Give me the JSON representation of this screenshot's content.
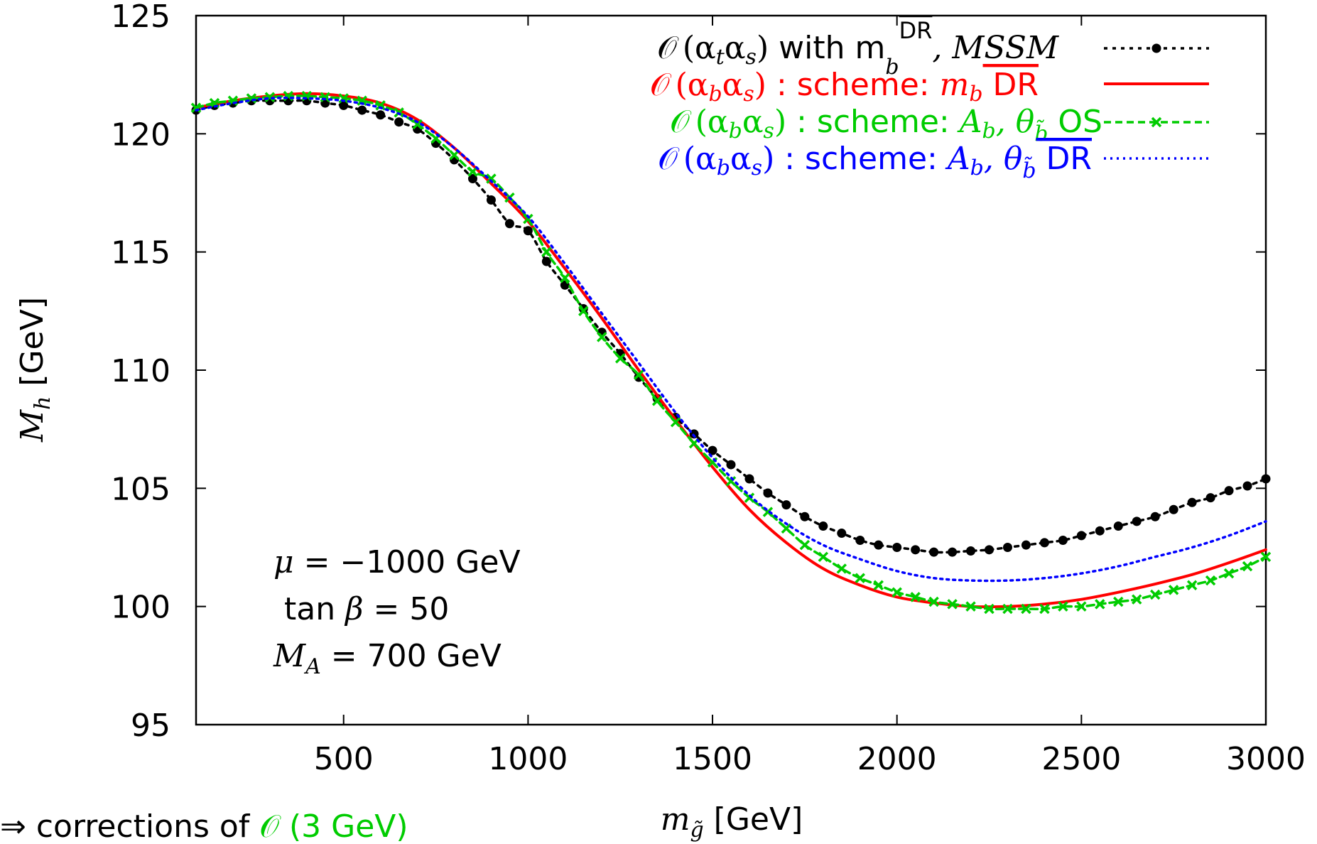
{
  "chart_data": {
    "type": "line",
    "xlabel": {
      "symbol": "m",
      "sub": "g̃",
      "unit": "[GeV]"
    },
    "ylabel": {
      "symbol": "M",
      "sub": "h",
      "unit": "[GeV]"
    },
    "xlim": [
      100,
      3000
    ],
    "ylim": [
      95,
      125
    ],
    "xticks": [
      500,
      1000,
      1500,
      2000,
      2500,
      3000
    ],
    "yticks": [
      95,
      100,
      105,
      110,
      115,
      120,
      125
    ],
    "legend_position": "top-right",
    "series": [
      {
        "legend": {
          "pre": "𝒪",
          "paren": "(α",
          "s1": "t",
          "mid": "α",
          "s2": "s",
          "close": ")",
          "text": " with m",
          "sub": "b",
          "sup": "DR",
          "tail": ", MSSM"
        },
        "color": "#000000",
        "style": "dotted-circles",
        "x": [
          100,
          150,
          200,
          250,
          300,
          350,
          400,
          450,
          500,
          550,
          600,
          650,
          700,
          750,
          800,
          850,
          900,
          950,
          1000,
          1050,
          1100,
          1150,
          1200,
          1250,
          1300,
          1350,
          1400,
          1450,
          1500,
          1550,
          1600,
          1650,
          1700,
          1750,
          1800,
          1850,
          1900,
          1950,
          2000,
          2050,
          2100,
          2150,
          2200,
          2250,
          2300,
          2350,
          2400,
          2450,
          2500,
          2550,
          2600,
          2650,
          2700,
          2750,
          2800,
          2850,
          2900,
          2950,
          3000
        ],
        "y": [
          121.0,
          121.2,
          121.3,
          121.4,
          121.4,
          121.4,
          121.4,
          121.3,
          121.2,
          121.0,
          120.8,
          120.5,
          120.2,
          119.6,
          118.9,
          118.1,
          117.2,
          116.2,
          115.9,
          114.6,
          113.6,
          112.6,
          111.6,
          110.7,
          109.7,
          108.8,
          108.0,
          107.3,
          106.6,
          106.0,
          105.4,
          104.8,
          104.3,
          103.8,
          103.4,
          103.1,
          102.8,
          102.6,
          102.5,
          102.4,
          102.3,
          102.3,
          102.35,
          102.4,
          102.5,
          102.6,
          102.7,
          102.8,
          103.0,
          103.2,
          103.4,
          103.6,
          103.8,
          104.1,
          104.4,
          104.6,
          104.9,
          105.1,
          105.4
        ]
      },
      {
        "legend": {
          "pre": "𝒪",
          "paren": "(α",
          "s1": "b",
          "mid": "α",
          "s2": "s",
          "close": ")",
          "text": " : scheme: ",
          "var": "m",
          "vsub": "b",
          "after": " DR"
        },
        "color": "#ff0000",
        "style": "solid",
        "x": [
          100,
          200,
          300,
          400,
          500,
          600,
          700,
          800,
          900,
          1000,
          1100,
          1200,
          1300,
          1400,
          1500,
          1600,
          1700,
          1800,
          1900,
          2000,
          2100,
          2200,
          2300,
          2400,
          2500,
          2600,
          2700,
          2800,
          2900,
          3000
        ],
        "y": [
          121.1,
          121.4,
          121.6,
          121.7,
          121.6,
          121.3,
          120.6,
          119.4,
          117.9,
          116.3,
          114.3,
          112.2,
          110.0,
          107.9,
          105.9,
          104.1,
          102.7,
          101.6,
          100.9,
          100.4,
          100.15,
          100.0,
          100.0,
          100.1,
          100.3,
          100.6,
          100.95,
          101.35,
          101.85,
          102.4
        ]
      },
      {
        "legend": {
          "pre": "𝒪",
          "paren": "(α",
          "s1": "b",
          "mid": "α",
          "s2": "s",
          "close": ")",
          "text": " : scheme: ",
          "var": "A",
          "vsub": "b",
          "sep": ", θ",
          "tsub": "b̃",
          "after": " OS"
        },
        "color": "#00cc00",
        "style": "dashed-crosses",
        "x": [
          100,
          150,
          200,
          250,
          300,
          350,
          400,
          450,
          500,
          550,
          600,
          650,
          700,
          750,
          800,
          850,
          900,
          950,
          1000,
          1050,
          1100,
          1150,
          1200,
          1250,
          1300,
          1350,
          1400,
          1450,
          1500,
          1550,
          1600,
          1650,
          1700,
          1750,
          1800,
          1850,
          1900,
          1950,
          2000,
          2050,
          2100,
          2150,
          2200,
          2250,
          2300,
          2350,
          2400,
          2450,
          2500,
          2550,
          2600,
          2650,
          2700,
          2750,
          2800,
          2850,
          2900,
          2950,
          3000
        ],
        "y": [
          121.1,
          121.3,
          121.4,
          121.5,
          121.55,
          121.6,
          121.6,
          121.55,
          121.5,
          121.4,
          121.2,
          120.9,
          120.4,
          119.8,
          119.1,
          118.4,
          118.1,
          117.3,
          116.4,
          115.0,
          113.9,
          112.5,
          111.4,
          110.5,
          109.8,
          108.7,
          107.8,
          106.9,
          106.1,
          105.3,
          104.6,
          104.0,
          103.3,
          102.6,
          102.1,
          101.6,
          101.2,
          100.9,
          100.6,
          100.4,
          100.2,
          100.1,
          100.0,
          99.9,
          99.9,
          99.9,
          99.9,
          100.0,
          100.0,
          100.1,
          100.2,
          100.3,
          100.5,
          100.7,
          100.9,
          101.1,
          101.4,
          101.7,
          102.1
        ]
      },
      {
        "legend": {
          "pre": "𝒪",
          "paren": "(α",
          "s1": "b",
          "mid": "α",
          "s2": "s",
          "close": ")",
          "text": " : scheme: ",
          "var": "A",
          "vsub": "b",
          "sep": ", θ",
          "tsub": "b̃",
          "after": " DR"
        },
        "color": "#0000ff",
        "style": "dotted",
        "x": [
          100,
          200,
          300,
          400,
          500,
          600,
          700,
          800,
          900,
          1000,
          1100,
          1200,
          1300,
          1400,
          1500,
          1600,
          1700,
          1800,
          1900,
          2000,
          2100,
          2200,
          2300,
          2400,
          2500,
          2600,
          2700,
          2800,
          2900,
          3000
        ],
        "y": [
          121.0,
          121.3,
          121.5,
          121.5,
          121.4,
          121.1,
          120.5,
          119.4,
          118.0,
          116.5,
          114.5,
          112.4,
          110.3,
          108.2,
          106.3,
          104.7,
          103.5,
          102.6,
          102.0,
          101.5,
          101.2,
          101.1,
          101.1,
          101.2,
          101.4,
          101.7,
          102.1,
          102.5,
          103.0,
          103.6
        ]
      }
    ],
    "annotations": {
      "mu": {
        "sym": "μ",
        "text": " = −1000 GeV"
      },
      "tanb": {
        "pre": "tan ",
        "sym": "β",
        "text": " = 50"
      },
      "ma": {
        "sym": "M",
        "sub": "A",
        "text": " = 700 GeV"
      }
    },
    "footer": {
      "arrow": "⇒",
      "text": " corrections of ",
      "big": "𝒪 (3 GeV)",
      "big_color": "#00cc00"
    }
  }
}
